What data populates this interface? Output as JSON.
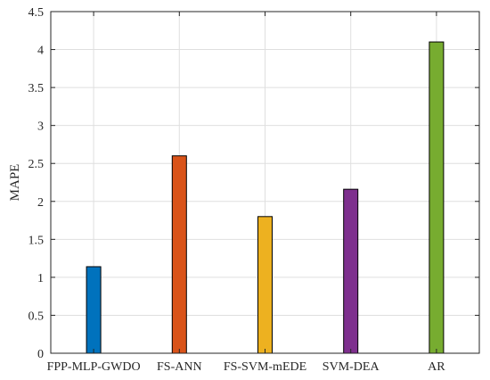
{
  "chart_data": {
    "type": "bar",
    "categories": [
      "FPP-MLP-GWDO",
      "FS-ANN",
      "FS-SVM-mEDE",
      "SVM-DEA",
      "AR"
    ],
    "values": [
      1.14,
      2.6,
      1.8,
      2.16,
      4.1
    ],
    "colors": [
      "#0072BD",
      "#D95319",
      "#EDB120",
      "#7E2F8E",
      "#77AC30"
    ],
    "title": "",
    "xlabel": "",
    "ylabel": "MAPE",
    "ylim": [
      0,
      4.5
    ],
    "yticks": [
      0,
      0.5,
      1,
      1.5,
      2,
      2.5,
      3,
      3.5,
      4,
      4.5
    ],
    "ytick_labels": [
      "0",
      "0.5",
      "1",
      "1.5",
      "2",
      "2.5",
      "3",
      "3.5",
      "4",
      "4.5"
    ],
    "grid": true,
    "legend": "none"
  }
}
